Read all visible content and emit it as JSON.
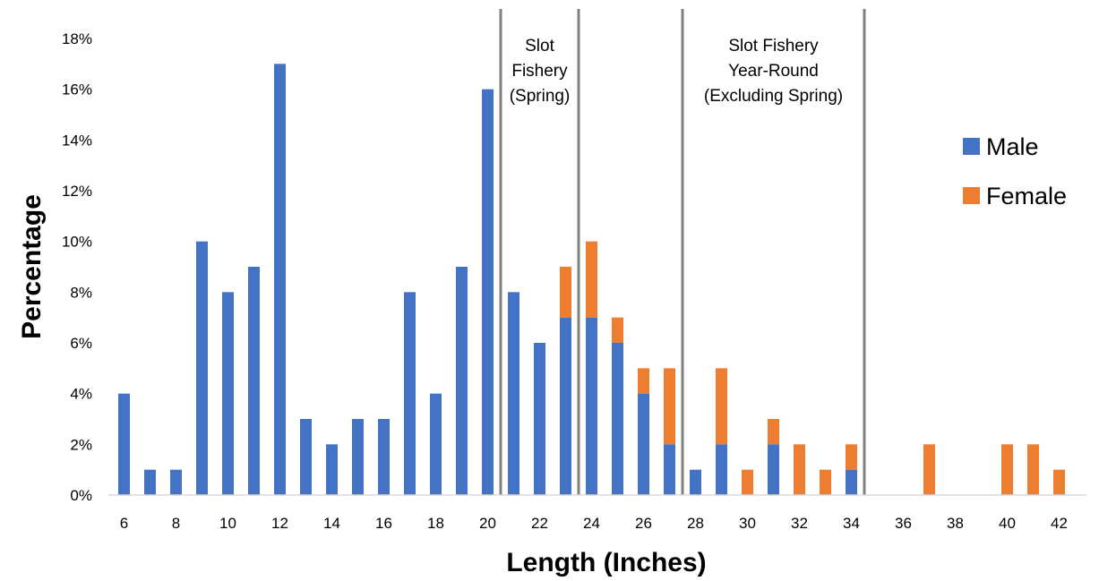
{
  "chart_data": {
    "type": "bar",
    "stacked": true,
    "title": "",
    "xlabel": "Length (Inches)",
    "ylabel": "Percentage",
    "x_tick_labels": [
      "6",
      "8",
      "10",
      "12",
      "14",
      "16",
      "18",
      "20",
      "22",
      "24",
      "26",
      "28",
      "30",
      "32",
      "34",
      "36",
      "38",
      "40",
      "42"
    ],
    "y_tick_labels": [
      "0%",
      "2%",
      "4%",
      "6%",
      "8%",
      "10%",
      "12%",
      "14%",
      "16%",
      "18%"
    ],
    "ylim": [
      0,
      18
    ],
    "xlim": [
      6,
      42
    ],
    "grid": false,
    "legend_position": "right",
    "categories": [
      6,
      7,
      8,
      9,
      10,
      11,
      12,
      13,
      14,
      15,
      16,
      17,
      18,
      19,
      20,
      21,
      22,
      23,
      24,
      25,
      26,
      27,
      28,
      29,
      30,
      31,
      32,
      33,
      34,
      35,
      36,
      37,
      38,
      39,
      40,
      41,
      42
    ],
    "series": [
      {
        "name": "Male",
        "color": "#4472C4",
        "values": [
          4,
          1,
          1,
          10,
          8,
          9,
          17,
          3,
          2,
          3,
          3,
          8,
          4,
          9,
          16,
          8,
          6,
          7,
          7,
          6,
          4,
          2,
          1,
          2,
          0,
          2,
          0,
          0,
          1,
          0,
          0,
          0,
          0,
          0,
          0,
          0,
          0
        ]
      },
      {
        "name": "Female",
        "color": "#ED7D31",
        "values": [
          0,
          0,
          0,
          0,
          0,
          0,
          0,
          0,
          0,
          0,
          0,
          0,
          0,
          0,
          0,
          0,
          0,
          2,
          3,
          1,
          1,
          3,
          0,
          3,
          1,
          1,
          2,
          1,
          1,
          0,
          0,
          2,
          0,
          0,
          2,
          2,
          1
        ]
      }
    ],
    "boundaries": [
      20.5,
      23.5,
      27.5,
      34.5
    ],
    "boundary_color": "#808080",
    "zones": [
      {
        "lines": [
          "Slot",
          "Fishery",
          "(Spring)"
        ],
        "from": 20.5,
        "to": 23.5
      },
      {
        "lines": [
          "Slot Fishery",
          "Year-Round",
          "(Excluding Spring)"
        ],
        "from": 27.5,
        "to": 34.5
      }
    ]
  }
}
